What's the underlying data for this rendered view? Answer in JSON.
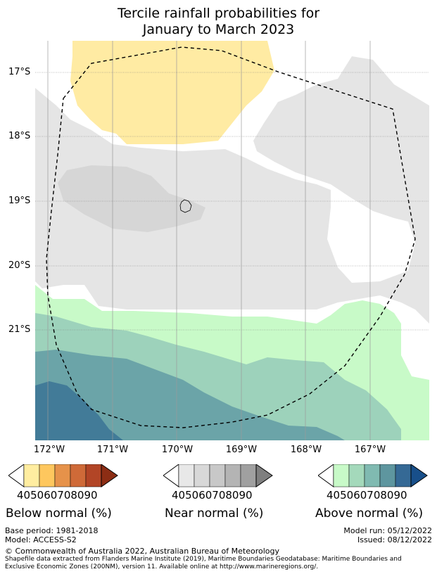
{
  "title": {
    "line1": "Tercile rainfall probabilities for",
    "line2": "January to March 2023"
  },
  "map": {
    "lat_labels": [
      "17°S",
      "18°S",
      "19°S",
      "20°S",
      "21°S"
    ],
    "lon_labels": [
      "172°W",
      "171°W",
      "170°W",
      "169°W",
      "168°W",
      "167°W"
    ],
    "colors": {
      "below_50": "#ffeba3",
      "near_40": "#e5e5e5",
      "near_50": "#d6d6d6",
      "above_40": "#c8fac8",
      "above_50": "#9dd2bb",
      "above_60": "#6ba4a8",
      "above_70": "#427b98"
    }
  },
  "legend": {
    "ticks": [
      "40",
      "50",
      "60",
      "70",
      "80",
      "90"
    ],
    "below": {
      "label": "Below normal (%)",
      "colors": [
        "#ffffff",
        "#ffeda0",
        "#fec75e",
        "#e6924a",
        "#cf6a38",
        "#b24526",
        "#8c2d14"
      ]
    },
    "near": {
      "label": "Near normal (%)",
      "colors": [
        "#ffffff",
        "#e8e8e8",
        "#d8d8d8",
        "#c8c8c8",
        "#b4b4b4",
        "#a0a0a0",
        "#7f7f7f"
      ]
    },
    "above": {
      "label": "Above normal (%)",
      "colors": [
        "#ffffff",
        "#c8fac8",
        "#a4d9bb",
        "#80bab1",
        "#5e969f",
        "#356995",
        "#184f8a"
      ]
    }
  },
  "footer": {
    "base_period": "Base period: 1981-2018",
    "model": "Model: ACCESS-S2",
    "model_run": "Model run: 05/12/2022",
    "issued": "Issued: 08/12/2022",
    "copyright": "© Commonwealth of Australia 2022, Australian Bureau of Meteorology",
    "shapefile_line1": "Shapefile data extracted from Flanders Marine Institute (2019), Maritime Boundaries Geodatabase: Maritime Boundaries and",
    "shapefile_line2": "Exclusive Economic Zones (200NM), version 11. Available online at http://www.marineregions.org/."
  }
}
